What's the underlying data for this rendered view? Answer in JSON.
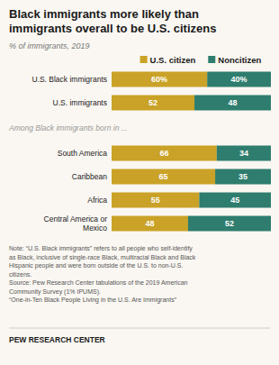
{
  "chart_data": {
    "type": "bar",
    "orientation": "horizontal",
    "stacked": true,
    "title": "Black immigrants more likely than\nimmigrants overall to be U.S. citizens",
    "subtitle": "% of immigrants, 2019",
    "categories": [
      "U.S. Black immigrants",
      "U.S. immigrants",
      "South America",
      "Caribbean",
      "Africa",
      "Central America or\nMexico"
    ],
    "series": [
      {
        "name": "U.S. citizen",
        "color": "#C9A227",
        "values": [
          60,
          52,
          66,
          65,
          55,
          48
        ],
        "value_labels": [
          "60%",
          "52",
          "66",
          "65",
          "55",
          "48"
        ]
      },
      {
        "name": "Noncitizen",
        "color": "#2E7D6E",
        "values": [
          40,
          48,
          34,
          35,
          45,
          52
        ],
        "value_labels": [
          "40%",
          "48",
          "34",
          "35",
          "45",
          "52"
        ]
      }
    ],
    "xlim": [
      0,
      100
    ],
    "tick_labels": false,
    "grid": false,
    "legend": "top",
    "data_labels": true,
    "annotations": [
      "Among Black immigrants born in ...",
      "Note: “U.S. Black immigrants” refers to all people who self-identify\nas Black, inclusive of single-race Black, multiracial Black and Black\nHispanic people and were born outside of the U.S. to non-U.S.\ncitizens.\nSource: Pew Research Center tabulations of the 2019 American\nCommunity Survey (1% IPUMS).\n“One-in-Ten Black People Living in the U.S. Are Immigrants”",
      "PEW RESEARCH CENTER"
    ]
  }
}
